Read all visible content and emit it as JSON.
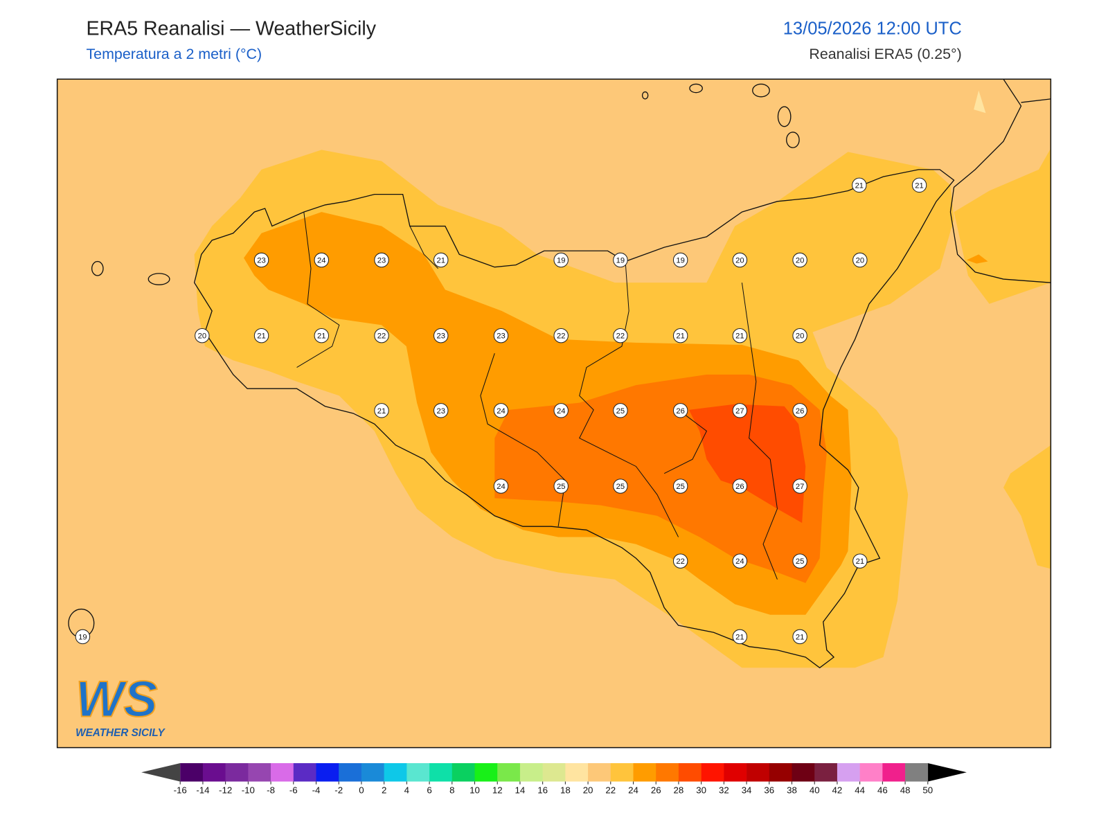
{
  "header": {
    "title": "ERA5 Reanalisi — WeatherSicily",
    "subtitle": "Temperatura a 2 metri (°C)",
    "datetime": "13/05/2026 12:00 UTC",
    "source": "Reanalisi ERA5 (0.25°)"
  },
  "stations": {
    "values": [
      21,
      21,
      23,
      24,
      23,
      21,
      19,
      19,
      19,
      20,
      20,
      20,
      20,
      21,
      21,
      22,
      23,
      23,
      22,
      22,
      21,
      21,
      20,
      21,
      23,
      24,
      24,
      25,
      26,
      27,
      26,
      24,
      25,
      25,
      25,
      26,
      27,
      22,
      24,
      25,
      21,
      19,
      21,
      21
    ]
  },
  "colorbar": {
    "ticks": [
      -16,
      -14,
      -12,
      -10,
      -8,
      -6,
      -4,
      -2,
      0,
      2,
      4,
      6,
      8,
      10,
      12,
      14,
      16,
      18,
      20,
      22,
      24,
      26,
      28,
      30,
      32,
      34,
      36,
      38,
      40,
      42,
      44,
      46,
      48,
      50
    ],
    "colors": [
      "#4b0068",
      "#6a0d8f",
      "#7b2a9e",
      "#9646b0",
      "#d96be8",
      "#5b2bc4",
      "#0a1ef0",
      "#1a6fd8",
      "#1a8ad8",
      "#0ec8e8",
      "#5ae6d0",
      "#0ee0a8",
      "#0ad060",
      "#18f018",
      "#7ae84a",
      "#c8ee8a",
      "#dde890",
      "#ffe4a0",
      "#fdc878",
      "#ffc43c",
      "#ff9c00",
      "#ff7800",
      "#ff4c00",
      "#ff1400",
      "#e00000",
      "#c00000",
      "#960000",
      "#6e0014",
      "#7a2040",
      "#d6a0f0",
      "#ff80c8",
      "#f0208c",
      "#808080"
    ],
    "under_color": "#444444",
    "over_color": "#000000"
  },
  "logo": {
    "mark": "WS",
    "name": "WEATHER SICILY"
  }
}
